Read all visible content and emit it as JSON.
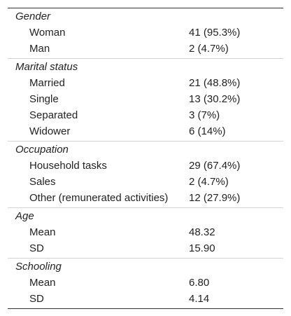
{
  "sections": [
    {
      "heading": "Gender",
      "rows": [
        {
          "label": "Woman",
          "value": "41 (95.3%)"
        },
        {
          "label": "Man",
          "value": "2 (4.7%)"
        }
      ]
    },
    {
      "heading": "Marital status",
      "rows": [
        {
          "label": "Married",
          "value": "21 (48.8%)"
        },
        {
          "label": "Single",
          "value": "13 (30.2%)"
        },
        {
          "label": "Separated",
          "value": "3 (7%)"
        },
        {
          "label": "Widower",
          "value": "6 (14%)"
        }
      ]
    },
    {
      "heading": "Occupation",
      "rows": [
        {
          "label": "Household tasks",
          "value": "29 (67.4%)"
        },
        {
          "label": "Sales",
          "value": "2 (4.7%)"
        },
        {
          "label": "Other (remunerated activities)",
          "value": "12 (27.9%)"
        }
      ]
    },
    {
      "heading": "Age",
      "rows": [
        {
          "label": "Mean",
          "value": "48.32"
        },
        {
          "label": "SD",
          "value": "15.90"
        }
      ]
    },
    {
      "heading": "Schooling",
      "rows": [
        {
          "label": "Mean",
          "value": "6.80"
        },
        {
          "label": "SD",
          "value": "4.14"
        }
      ]
    }
  ]
}
